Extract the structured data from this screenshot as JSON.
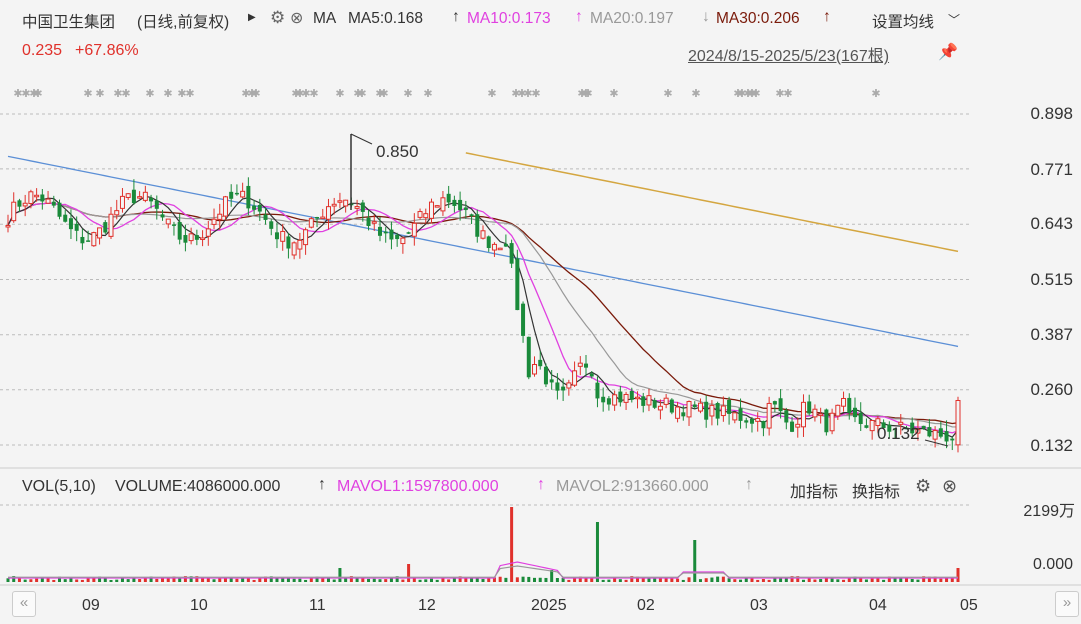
{
  "header": {
    "title": "中国卫生集团",
    "mode": "(日线,前复权)",
    "ma_label": "MA",
    "ma5": "MA5:0.168",
    "ma10": "MA10:0.173",
    "ma20": "MA20:0.197",
    "ma30": "MA30:0.206",
    "settings": "设置均线",
    "price": "0.235",
    "change": "+67.86%",
    "range": "2024/8/15-2025/5/23(167根)"
  },
  "colors": {
    "up": "#e0312b",
    "down": "#1a8a3a",
    "ma5": "#333333",
    "ma10": "#e040e0",
    "ma20": "#999999",
    "ma30": "#7a1a0a",
    "ma_blue": "#5b8fd6",
    "ma_gold": "#d4a640"
  },
  "volume_header": {
    "vol": "VOL(5,10)",
    "volume": "VOLUME:4086000.000",
    "mavol1": "MAVOL1:1597800.000",
    "mavol2": "MAVOL2:913660.000",
    "add": "加指标",
    "switch": "换指标"
  },
  "chart_data": {
    "type": "candlestick",
    "y_ticks": [
      "0.898",
      "0.771",
      "0.643",
      "0.515",
      "0.387",
      "0.260",
      "0.132"
    ],
    "ylim": [
      0.132,
      0.898
    ],
    "x_labels": [
      "09",
      "10",
      "11",
      "12",
      "2025",
      "02",
      "03",
      "04",
      "05"
    ],
    "annotations": [
      {
        "text": "0.850"
      },
      {
        "text": "0.132"
      }
    ],
    "volume_ticks": [
      "2199万",
      "0.000"
    ],
    "series": [
      {
        "name": "MA5",
        "value": 0.168
      },
      {
        "name": "MA10",
        "value": 0.173
      },
      {
        "name": "MA20",
        "value": 0.197
      },
      {
        "name": "MA30",
        "value": 0.206
      }
    ]
  }
}
